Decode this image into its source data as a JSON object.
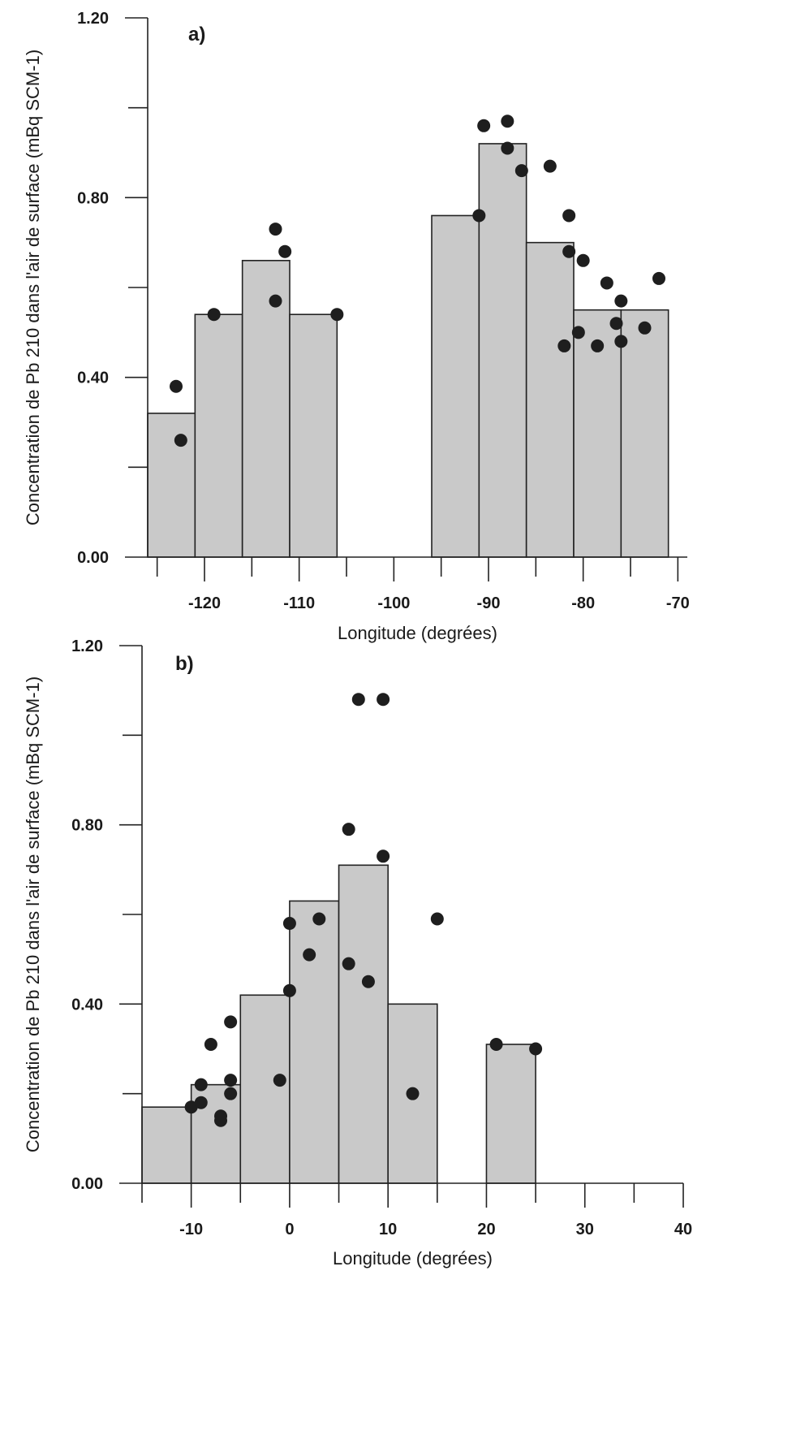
{
  "chart_data": [
    {
      "type": "bar",
      "panel_label": "a)",
      "xlabel": "Longitude (degrées)",
      "ylabel": "Concentration de Pb 210 dans l'air de surface (mBq SCM-1)",
      "xlim": [
        -126,
        -69
      ],
      "ylim": [
        0,
        1.2
      ],
      "x_ticks": [
        -120,
        -110,
        -100,
        -90,
        -80,
        -70
      ],
      "y_ticks": [
        "0.00",
        "0.40",
        "0.80",
        "1.20"
      ],
      "grid": false,
      "colors": {
        "bar": "#c9c9c9",
        "marker": "#1e1e1e"
      },
      "bars": [
        {
          "x0": -126,
          "x1": -121,
          "value": 0.32
        },
        {
          "x0": -121,
          "x1": -116,
          "value": 0.54
        },
        {
          "x0": -116,
          "x1": -111,
          "value": 0.66
        },
        {
          "x0": -111,
          "x1": -106,
          "value": 0.54
        },
        {
          "x0": -96,
          "x1": -91,
          "value": 0.76
        },
        {
          "x0": -91,
          "x1": -86,
          "value": 0.92
        },
        {
          "x0": -86,
          "x1": -81,
          "value": 0.7
        },
        {
          "x0": -81,
          "x1": -76,
          "value": 0.55
        },
        {
          "x0": -76,
          "x1": -71,
          "value": 0.55
        }
      ],
      "points": [
        {
          "x": -123,
          "y": 0.38
        },
        {
          "x": -122.5,
          "y": 0.26
        },
        {
          "x": -119,
          "y": 0.54
        },
        {
          "x": -112.5,
          "y": 0.73
        },
        {
          "x": -111.5,
          "y": 0.68
        },
        {
          "x": -112.5,
          "y": 0.57
        },
        {
          "x": -106,
          "y": 0.54
        },
        {
          "x": -91,
          "y": 0.76
        },
        {
          "x": -90.5,
          "y": 0.96
        },
        {
          "x": -88,
          "y": 0.97
        },
        {
          "x": -88,
          "y": 0.91
        },
        {
          "x": -86.5,
          "y": 0.86
        },
        {
          "x": -83.5,
          "y": 0.87
        },
        {
          "x": -81.5,
          "y": 0.76
        },
        {
          "x": -81.5,
          "y": 0.68
        },
        {
          "x": -80,
          "y": 0.66
        },
        {
          "x": -77.5,
          "y": 0.61
        },
        {
          "x": -76,
          "y": 0.57
        },
        {
          "x": -72,
          "y": 0.62
        },
        {
          "x": -82,
          "y": 0.47
        },
        {
          "x": -80.5,
          "y": 0.5
        },
        {
          "x": -78.5,
          "y": 0.47
        },
        {
          "x": -76.5,
          "y": 0.52
        },
        {
          "x": -76,
          "y": 0.48
        },
        {
          "x": -73.5,
          "y": 0.51
        }
      ]
    },
    {
      "type": "bar",
      "panel_label": "b)",
      "xlabel": "Longitude (degrées)",
      "ylabel": "Concentration de Pb 210 dans l'air de surface (mBq SCM-1)",
      "xlim": [
        -15,
        40
      ],
      "ylim": [
        0,
        1.2
      ],
      "x_ticks": [
        -10,
        0,
        10,
        20,
        30,
        40
      ],
      "y_ticks": [
        "0.00",
        "0.40",
        "0.80",
        "1.20"
      ],
      "grid": false,
      "colors": {
        "bar": "#c9c9c9",
        "marker": "#1e1e1e"
      },
      "bars": [
        {
          "x0": -15,
          "x1": -10,
          "value": 0.17
        },
        {
          "x0": -10,
          "x1": -5,
          "value": 0.22
        },
        {
          "x0": -5,
          "x1": 0,
          "value": 0.42
        },
        {
          "x0": 0,
          "x1": 5,
          "value": 0.63
        },
        {
          "x0": 5,
          "x1": 10,
          "value": 0.71
        },
        {
          "x0": 10,
          "x1": 15,
          "value": 0.4
        },
        {
          "x0": 20,
          "x1": 25,
          "value": 0.31
        }
      ],
      "points": [
        {
          "x": -10,
          "y": 0.17
        },
        {
          "x": -9,
          "y": 0.18
        },
        {
          "x": -9,
          "y": 0.22
        },
        {
          "x": -8,
          "y": 0.31
        },
        {
          "x": -7,
          "y": 0.15
        },
        {
          "x": -7,
          "y": 0.14
        },
        {
          "x": -6,
          "y": 0.23
        },
        {
          "x": -6,
          "y": 0.2
        },
        {
          "x": -6,
          "y": 0.36
        },
        {
          "x": -1,
          "y": 0.23
        },
        {
          "x": 0,
          "y": 0.58
        },
        {
          "x": 0,
          "y": 0.43
        },
        {
          "x": 2,
          "y": 0.51
        },
        {
          "x": 3,
          "y": 0.59
        },
        {
          "x": 6,
          "y": 0.79
        },
        {
          "x": 6,
          "y": 0.49
        },
        {
          "x": 7,
          "y": 1.08
        },
        {
          "x": 8,
          "y": 0.45
        },
        {
          "x": 9.5,
          "y": 1.08
        },
        {
          "x": 9.5,
          "y": 0.73
        },
        {
          "x": 12.5,
          "y": 0.2
        },
        {
          "x": 15,
          "y": 0.59
        },
        {
          "x": 21,
          "y": 0.31
        },
        {
          "x": 25,
          "y": 0.3
        }
      ]
    }
  ]
}
